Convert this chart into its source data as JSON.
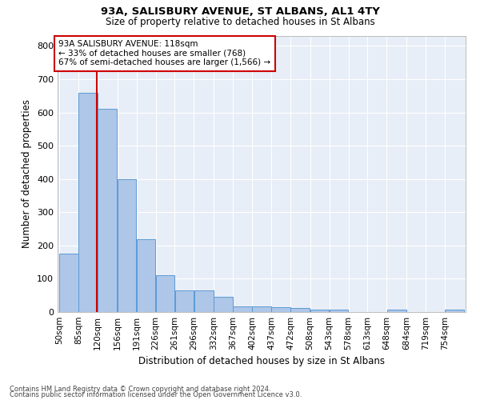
{
  "title1": "93A, SALISBURY AVENUE, ST ALBANS, AL1 4TY",
  "title2": "Size of property relative to detached houses in St Albans",
  "xlabel": "Distribution of detached houses by size in St Albans",
  "ylabel": "Number of detached properties",
  "footnote1": "Contains HM Land Registry data © Crown copyright and database right 2024.",
  "footnote2": "Contains public sector information licensed under the Open Government Licence v3.0.",
  "property_size": 118,
  "property_label": "93A SALISBURY AVENUE: 118sqm",
  "pct_smaller": 33,
  "n_smaller": 768,
  "pct_larger": 67,
  "n_larger": 1566,
  "bin_labels": [
    "50sqm",
    "85sqm",
    "120sqm",
    "156sqm",
    "191sqm",
    "226sqm",
    "261sqm",
    "296sqm",
    "332sqm",
    "367sqm",
    "402sqm",
    "437sqm",
    "472sqm",
    "508sqm",
    "543sqm",
    "578sqm",
    "613sqm",
    "648sqm",
    "684sqm",
    "719sqm",
    "754sqm"
  ],
  "bin_edges": [
    50,
    85,
    120,
    156,
    191,
    226,
    261,
    296,
    332,
    367,
    402,
    437,
    472,
    508,
    543,
    578,
    613,
    648,
    684,
    719,
    754,
    789
  ],
  "bar_heights": [
    175,
    660,
    610,
    400,
    218,
    110,
    65,
    65,
    45,
    18,
    18,
    15,
    13,
    7,
    8,
    0,
    0,
    8,
    0,
    0,
    8
  ],
  "bar_color": "#aec6e8",
  "bar_edge_color": "#5b9bd5",
  "property_line_color": "#cc0000",
  "annotation_box_color": "#cc0000",
  "background_color": "#e8eef7",
  "grid_color": "#ffffff",
  "fig_background": "#ffffff",
  "ylim": [
    0,
    830
  ],
  "yticks": [
    0,
    100,
    200,
    300,
    400,
    500,
    600,
    700,
    800
  ]
}
